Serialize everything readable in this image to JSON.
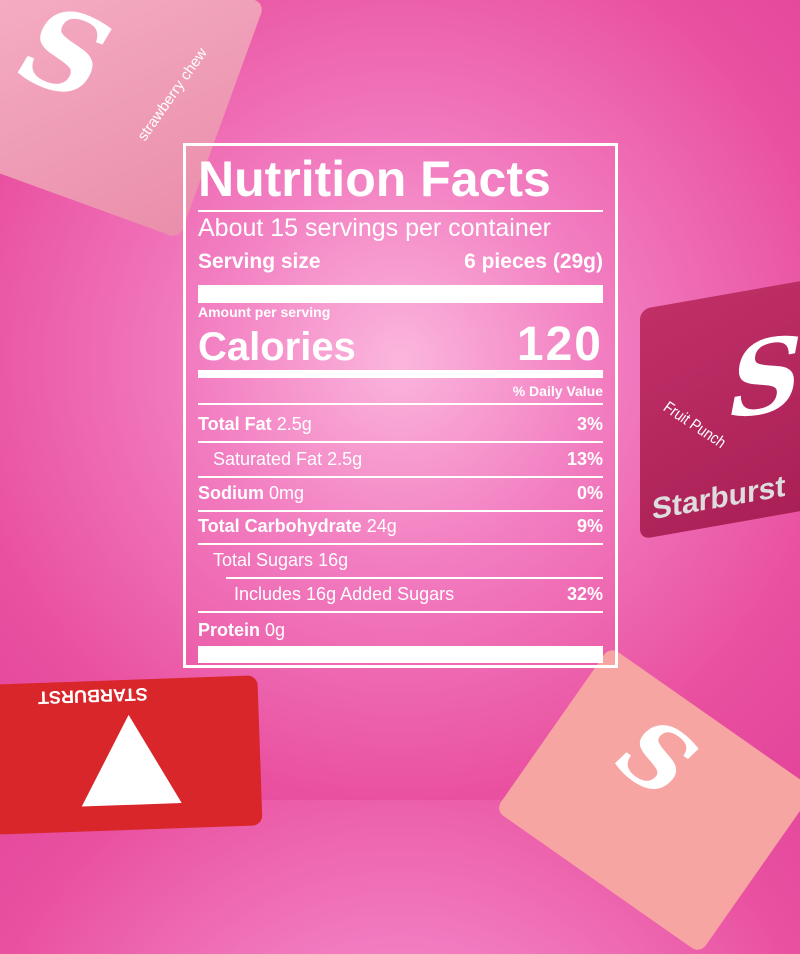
{
  "candies": [
    {
      "flavor": "strawberry chew",
      "color": "#f2a0b8"
    },
    {
      "flavor": "Fruit Punch",
      "brand": "Starburst",
      "color": "#b8265f"
    },
    {
      "brand": "STARBURST",
      "color": "#d9262b"
    },
    {
      "color": "#f6a5a3"
    }
  ],
  "label": {
    "title": "Nutrition Facts",
    "servings": "About 15 servings per container",
    "serving_size_label": "Serving size",
    "serving_size_value": "6 pieces (29g)",
    "amount_per_serving": "Amount per serving",
    "calories_label": "Calories",
    "calories_value": "120",
    "daily_value_header": "% Daily Value",
    "nutrients": [
      {
        "name": "Total Fat",
        "amount": "2.5g",
        "dv": "3%"
      },
      {
        "name": "Saturated Fat",
        "amount": "2.5g",
        "dv": "13%"
      },
      {
        "name": "Sodium",
        "amount": "0mg",
        "dv": "0%"
      },
      {
        "name": "Total Carbohydrate",
        "amount": "24g",
        "dv": "9%"
      },
      {
        "name": "Total Sugars",
        "amount": "16g",
        "dv": ""
      },
      {
        "name": "Includes 16g Added Sugars",
        "amount": "",
        "dv": "32%"
      },
      {
        "name": "Protein",
        "amount": "0g",
        "dv": ""
      }
    ]
  }
}
